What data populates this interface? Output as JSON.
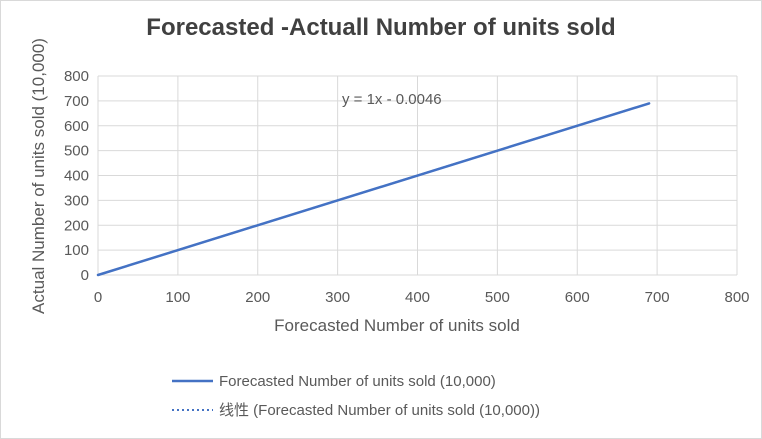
{
  "chart_data": {
    "type": "line",
    "title": "Forecasted -Actuall Number of units sold",
    "xlabel": "Forecasted Number of units sold",
    "ylabel": "Actual Number of units sold (10,000)",
    "xlim": [
      0,
      800
    ],
    "ylim": [
      0,
      800
    ],
    "xticks": [
      "0",
      "100",
      "200",
      "300",
      "400",
      "500",
      "600",
      "700",
      "800"
    ],
    "yticks": [
      "0",
      "100",
      "200",
      "300",
      "400",
      "500",
      "600",
      "700",
      "800"
    ],
    "grid": true,
    "legend_position": "bottom",
    "series": [
      {
        "name": "Forecasted Number of units sold (10,000)",
        "color": "#4472c4",
        "style": "solid",
        "x": [
          0,
          690
        ],
        "y": [
          0,
          690
        ]
      },
      {
        "name": "线性 (Forecasted Number of units sold (10,000))",
        "color": "#4472c4",
        "style": "dotted",
        "x": [
          0,
          690
        ],
        "y": [
          -0.0046,
          689.9954
        ]
      }
    ],
    "annotations": [
      {
        "text": "y = 1x - 0.0046"
      }
    ]
  }
}
